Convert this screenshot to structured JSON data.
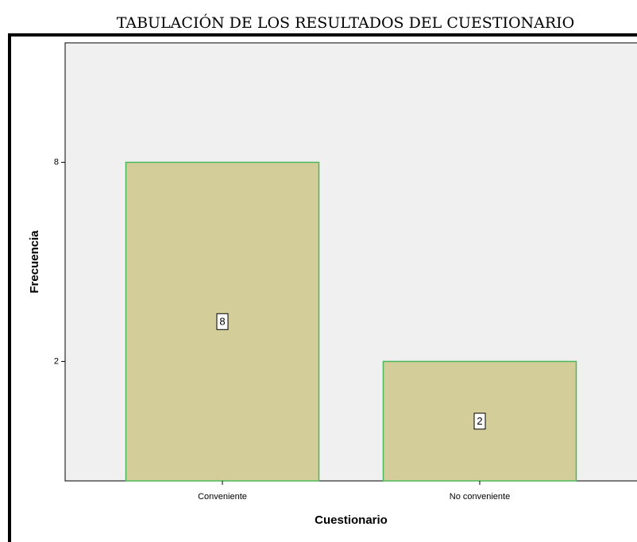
{
  "chart_data": {
    "type": "bar",
    "title": "TABULACIÓN DE LOS RESULTADOS DEL CUESTIONARIO",
    "x_label": "Cuestionario",
    "y_label": "Frecuencia",
    "categories": [
      "Conveniente",
      "No conveniente"
    ],
    "values": [
      8,
      2
    ],
    "color": "#d3cd99",
    "edge_color": "#4cb85c",
    "ylim": [
      -1.6,
      11.6
    ],
    "yticks": [
      2,
      8
    ],
    "grid": false,
    "value_labels_shown": true
  }
}
